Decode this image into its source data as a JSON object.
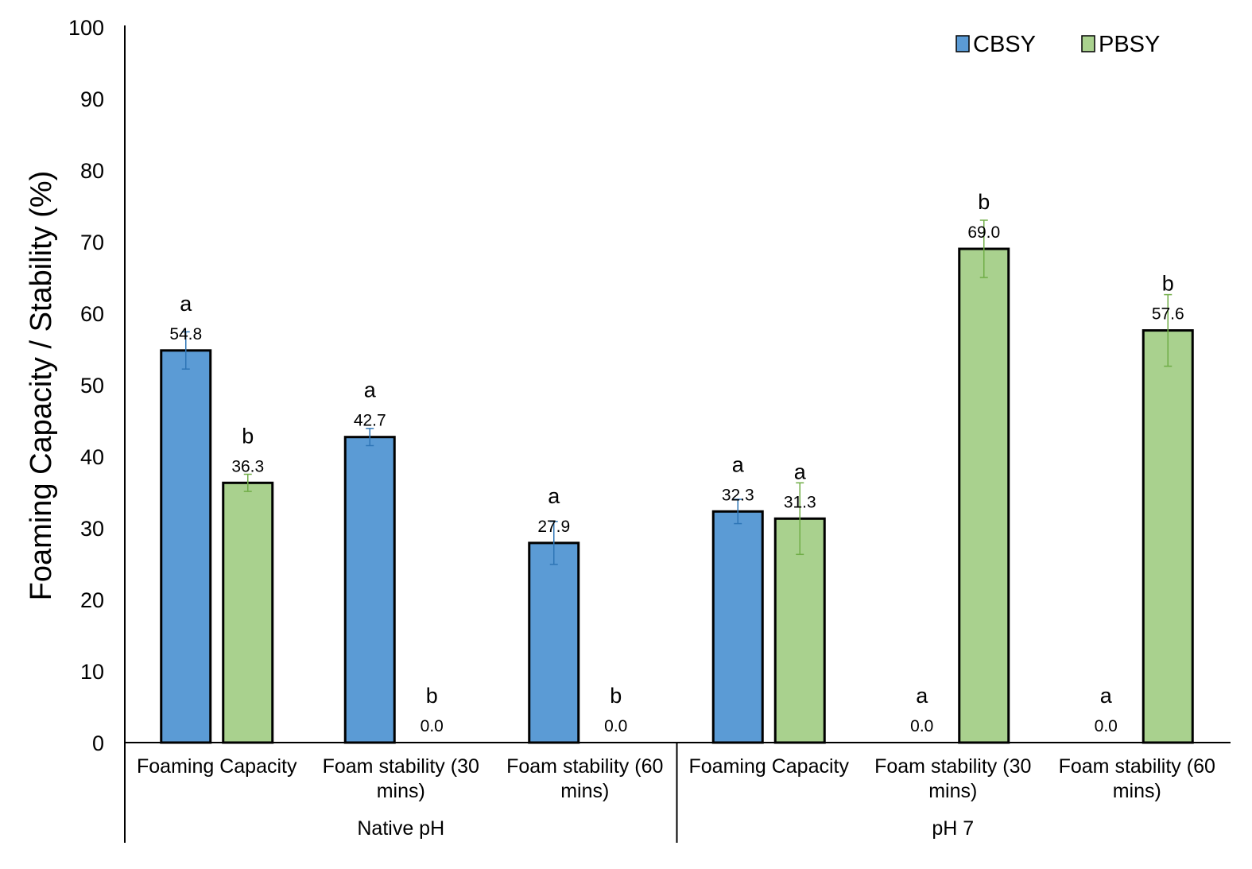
{
  "chart_data": {
    "type": "bar",
    "ylabel": "Foaming Capacity / Stability (%)",
    "ylim": [
      0,
      100
    ],
    "yticks": [
      "0",
      "10",
      "20",
      "30",
      "40",
      "50",
      "60",
      "70",
      "80",
      "90",
      "100"
    ],
    "grid": false,
    "legend_position": "top-right",
    "groups": [
      {
        "name": "Native pH",
        "categories": [
          {
            "lines": [
              "Foaming  Capacity"
            ]
          },
          {
            "lines": [
              "Foam stability (30",
              "mins)"
            ]
          },
          {
            "lines": [
              "Foam stability (60",
              "mins)"
            ]
          }
        ]
      },
      {
        "name": "pH 7",
        "categories": [
          {
            "lines": [
              "Foaming  Capacity"
            ]
          },
          {
            "lines": [
              "Foam stability (30",
              "mins)"
            ]
          },
          {
            "lines": [
              "Foam stability (60",
              "mins)"
            ]
          }
        ]
      }
    ],
    "series": [
      {
        "name": "CBSY",
        "color": "#5B9BD5",
        "values": [
          54.8,
          42.7,
          27.9,
          32.3,
          0.0,
          0.0
        ],
        "labels": [
          "54.8",
          "42.7",
          "27.9",
          "32.3",
          "0.0",
          "0.0"
        ],
        "errors": [
          2.6,
          1.2,
          3.0,
          1.7,
          0,
          0
        ],
        "significance": [
          "a",
          "a",
          "a",
          "a",
          "a",
          "a"
        ]
      },
      {
        "name": "PBSY",
        "color": "#A9D18E",
        "values": [
          36.3,
          0.0,
          0.0,
          31.3,
          69.0,
          57.6
        ],
        "labels": [
          "36.3",
          "0.0",
          "0.0",
          "31.3",
          "69.0",
          "57.6"
        ],
        "errors": [
          1.2,
          0,
          0,
          5.0,
          4.0,
          5.0
        ],
        "significance": [
          "b",
          "b",
          "b",
          "a",
          "b",
          "b"
        ]
      }
    ]
  }
}
